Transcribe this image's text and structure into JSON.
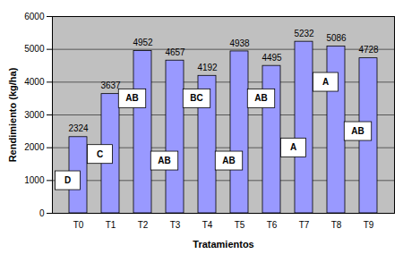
{
  "chart_data": {
    "type": "bar",
    "categories": [
      "T0",
      "T1",
      "T2",
      "T3",
      "T4",
      "T5",
      "T6",
      "T7",
      "T8",
      "T9"
    ],
    "values": [
      2324,
      3637,
      4952,
      4657,
      4192,
      4938,
      4495,
      5232,
      5086,
      4728
    ],
    "color": "#9999ff",
    "x_label": "Tratamientos",
    "y_label": "Rendimiento (kg/ha)",
    "ylim": [
      0,
      6000
    ],
    "yticks": [
      0,
      1000,
      2000,
      3000,
      4000,
      5000,
      6000
    ],
    "grid": true,
    "data_labels": true,
    "annotations": [
      {
        "category": "T0",
        "y": 1000,
        "text": "D"
      },
      {
        "category": "T1",
        "y": 1800,
        "text": "C"
      },
      {
        "category": "T2",
        "y": 3500,
        "text": "AB"
      },
      {
        "category": "T3",
        "y": 1600,
        "text": "AB"
      },
      {
        "category": "T4",
        "y": 3500,
        "text": "BC"
      },
      {
        "category": "T5",
        "y": 1600,
        "text": "AB"
      },
      {
        "category": "T6",
        "y": 3500,
        "text": "AB"
      },
      {
        "category": "T7",
        "y": 2000,
        "text": "A"
      },
      {
        "category": "T8",
        "y": 4000,
        "text": "A"
      },
      {
        "category": "T9",
        "y": 2500,
        "text": "AB"
      }
    ]
  }
}
